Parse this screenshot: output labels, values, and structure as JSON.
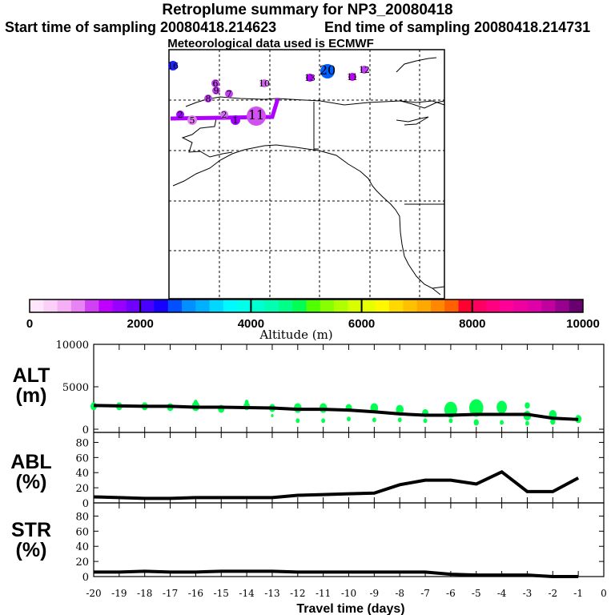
{
  "header": {
    "title": "Retroplume summary for NP3_20080418",
    "start_label": "Start time of sampling 20080418.214623",
    "end_label": "End time of sampling 20080418.214731",
    "met_label": "Meteorological data used is ECMWF"
  },
  "map": {
    "plume_color": "#b000ff",
    "markers": [
      {
        "label": "16",
        "color": "#2020ff"
      },
      {
        "label": "6",
        "color": "#c040f0"
      },
      {
        "label": "9",
        "color": "#c040f0"
      },
      {
        "label": "7",
        "color": "#c040f0"
      },
      {
        "label": "8",
        "color": "#c040f0"
      },
      {
        "label": "10",
        "color": "#d060f0"
      },
      {
        "label": "13",
        "color": "#b000ff"
      },
      {
        "label": "20",
        "color": "#0060ff"
      },
      {
        "label": "11",
        "color": "#c000ff"
      },
      {
        "label": "12",
        "color": "#c040f0"
      },
      {
        "label": "11",
        "color": "#d050f0"
      },
      {
        "label": "2",
        "color": "#a000ff"
      },
      {
        "label": "5",
        "color": "#e080f0"
      },
      {
        "label": "2",
        "color": "#d070f0"
      },
      {
        "label": "1",
        "color": "#a000ff"
      }
    ]
  },
  "colorbar": {
    "label": "Altitude (m)",
    "tick_labels": [
      "0",
      "2000",
      "4000",
      "6000",
      "8000",
      "10000"
    ],
    "range": [
      0,
      10000
    ],
    "colors": [
      "#ffe6fa",
      "#fad0f8",
      "#f5b0f5",
      "#e882f5",
      "#d040f5",
      "#c000ff",
      "#9800ff",
      "#7000ff",
      "#4800ff",
      "#1800ff",
      "#0050ff",
      "#0090ff",
      "#00b0ff",
      "#00d8ff",
      "#00f8ff",
      "#00ffea",
      "#00ffd0",
      "#00ffb0",
      "#00ff88",
      "#00ff50",
      "#50ff00",
      "#88ff00",
      "#b0ff00",
      "#d8ff00",
      "#e8ff00",
      "#fff800",
      "#ffd800",
      "#ffc000",
      "#ffa800",
      "#ff8800",
      "#ff6000",
      "#ff0030",
      "#ff0060",
      "#ff0080",
      "#ff0098",
      "#f000a0",
      "#e000a8",
      "#c000a0",
      "#980090",
      "#680070"
    ]
  },
  "panels": {
    "alt": {
      "label1": "ALT",
      "label2": "(m)"
    },
    "abl": {
      "label1": "ABL",
      "label2": "(%)"
    },
    "str": {
      "label1": "STR",
      "label2": "(%)"
    }
  },
  "chart_data": [
    {
      "type": "line",
      "name": "ALT",
      "ylabel": "ALT (m)",
      "x": [
        -20,
        -19,
        -18,
        -17,
        -16,
        -15,
        -14,
        -13,
        -12,
        -11,
        -10,
        -9,
        -8,
        -7,
        -6,
        -5,
        -4,
        -3,
        -2,
        -1
      ],
      "values": [
        2800,
        2750,
        2700,
        2700,
        2600,
        2600,
        2550,
        2500,
        2350,
        2350,
        2250,
        2050,
        1800,
        1650,
        1650,
        1750,
        1750,
        1750,
        1300,
        1150
      ],
      "ylim": [
        0,
        10000
      ],
      "ytick_labels": [
        "0",
        "5000",
        "10000"
      ],
      "scatter_color": "#00ff50",
      "scatter": [
        [
          -20,
          2700,
          5
        ],
        [
          -19,
          2700,
          5
        ],
        [
          -18,
          2700,
          5
        ],
        [
          -17,
          2600,
          5
        ],
        [
          -16,
          2700,
          6
        ],
        [
          -16,
          3200,
          3
        ],
        [
          -15,
          2400,
          5
        ],
        [
          -14,
          2700,
          5
        ],
        [
          -14,
          3200,
          3
        ],
        [
          -13,
          2500,
          5
        ],
        [
          -13,
          1600,
          2
        ],
        [
          -12,
          2500,
          6
        ],
        [
          -12,
          1000,
          3
        ],
        [
          -11,
          2500,
          6
        ],
        [
          -11,
          1000,
          3
        ],
        [
          -10,
          2500,
          5
        ],
        [
          -10,
          1200,
          3
        ],
        [
          -9,
          2500,
          6
        ],
        [
          -9,
          1100,
          3
        ],
        [
          -8,
          2300,
          6
        ],
        [
          -8,
          1100,
          3
        ],
        [
          -7,
          1900,
          5
        ],
        [
          -7,
          1000,
          3
        ],
        [
          -6,
          2300,
          10
        ],
        [
          -6,
          1000,
          3
        ],
        [
          -5,
          2500,
          11
        ],
        [
          -5,
          800,
          4
        ],
        [
          -4,
          2600,
          8
        ],
        [
          -4,
          800,
          3
        ],
        [
          -3,
          2800,
          4
        ],
        [
          -3,
          1600,
          6
        ],
        [
          -3,
          700,
          3
        ],
        [
          -2,
          1700,
          6
        ],
        [
          -2,
          900,
          4
        ],
        [
          -1,
          1200,
          5
        ]
      ]
    },
    {
      "type": "line",
      "name": "ABL",
      "ylabel": "ABL (%)",
      "x": [
        -20,
        -19,
        -18,
        -17,
        -16,
        -15,
        -14,
        -13,
        -12,
        -11,
        -10,
        -9,
        -8,
        -7,
        -6,
        -5,
        -4,
        -3,
        -2,
        -1
      ],
      "values": [
        8,
        7,
        6,
        6,
        7,
        7,
        7,
        7,
        10,
        11,
        12,
        13,
        24,
        30,
        30,
        25,
        41,
        15,
        15,
        33
      ],
      "ylim": [
        0,
        90
      ],
      "ytick_labels": [
        "0",
        "20",
        "40",
        "60",
        "80"
      ]
    },
    {
      "type": "line",
      "name": "STR",
      "ylabel": "STR (%)",
      "x": [
        -20,
        -19,
        -18,
        -17,
        -16,
        -15,
        -14,
        -13,
        -12,
        -11,
        -10,
        -9,
        -8,
        -7,
        -6,
        -5,
        -4,
        -3,
        -2,
        -1
      ],
      "values": [
        6,
        6,
        7,
        6,
        6,
        7,
        7,
        7,
        6,
        6,
        6,
        6,
        6,
        6,
        3,
        2,
        2,
        2,
        0,
        0
      ],
      "ylim": [
        0,
        90
      ],
      "ytick_labels": [
        "0",
        "20",
        "40",
        "60",
        "80"
      ]
    }
  ],
  "xaxis": {
    "label": "Travel time (days)",
    "tick_labels": [
      "-20",
      "-19",
      "-18",
      "-17",
      "-16",
      "-15",
      "-14",
      "-13",
      "-12",
      "-11",
      "-10",
      "-9",
      "-8",
      "-7",
      "-6",
      "-5",
      "-4",
      "-3",
      "-2",
      "-1",
      "0"
    ],
    "xlim": [
      -20,
      0
    ]
  }
}
